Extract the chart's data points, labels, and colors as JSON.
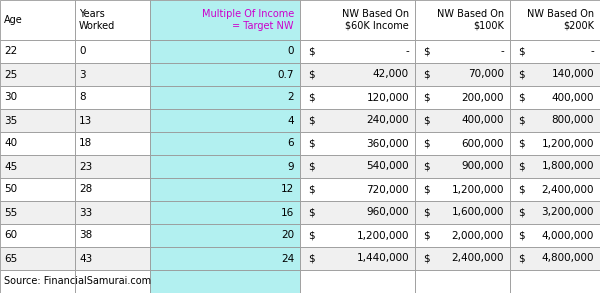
{
  "source": "Source: FinancialSamurai.com",
  "headers": [
    "Age",
    "Years\nWorked",
    "Multiple Of Income\n= Target NW",
    "NW Based On\n$60K Income",
    "NW Based On\n$100K",
    "NW Based On\n$200K"
  ],
  "rows": [
    [
      "22",
      "0",
      "0",
      "$",
      "-",
      "$",
      "-",
      "$",
      "-"
    ],
    [
      "25",
      "3",
      "0.7",
      "$",
      "42,000",
      "$",
      "70,000",
      "$",
      "140,000"
    ],
    [
      "30",
      "8",
      "2",
      "$",
      "120,000",
      "$",
      "200,000",
      "$",
      "400,000"
    ],
    [
      "35",
      "13",
      "4",
      "$",
      "240,000",
      "$",
      "400,000",
      "$",
      "800,000"
    ],
    [
      "40",
      "18",
      "6",
      "$",
      "360,000",
      "$",
      "600,000",
      "$",
      "1,200,000"
    ],
    [
      "45",
      "23",
      "9",
      "$",
      "540,000",
      "$",
      "900,000",
      "$",
      "1,800,000"
    ],
    [
      "50",
      "28",
      "12",
      "$",
      "720,000",
      "$",
      "1,200,000",
      "$",
      "2,400,000"
    ],
    [
      "55",
      "33",
      "16",
      "$",
      "960,000",
      "$",
      "1,600,000",
      "$",
      "3,200,000"
    ],
    [
      "60",
      "38",
      "20",
      "$",
      "1,200,000",
      "$",
      "2,000,000",
      "$",
      "4,000,000"
    ],
    [
      "65",
      "43",
      "24",
      "$",
      "1,440,000",
      "$",
      "2,400,000",
      "$",
      "4,800,000"
    ]
  ],
  "rows_simple": [
    [
      "22",
      "0",
      "0",
      "$ -",
      "$ -",
      "$ -"
    ],
    [
      "25",
      "3",
      "0.7",
      "$ 42,000",
      "$ 70,000",
      "$ 140,000"
    ],
    [
      "30",
      "8",
      "2",
      "$ 120,000",
      "$ 200,000",
      "$ 400,000"
    ],
    [
      "35",
      "13",
      "4",
      "$ 240,000",
      "$ 400,000",
      "$ 800,000"
    ],
    [
      "40",
      "18",
      "6",
      "$ 360,000",
      "$ 600,000",
      "$ 1,200,000"
    ],
    [
      "45",
      "23",
      "9",
      "$ 540,000",
      "$ 900,000",
      "$ 1,800,000"
    ],
    [
      "50",
      "28",
      "12",
      "$ 720,000",
      "$ 1,200,000",
      "$ 2,400,000"
    ],
    [
      "55",
      "33",
      "16",
      "$ 960,000",
      "$ 1,600,000",
      "$ 3,200,000"
    ],
    [
      "60",
      "38",
      "20",
      "$ 1,200,000",
      "$ 2,000,000",
      "$ 4,000,000"
    ],
    [
      "65",
      "43",
      "24",
      "$ 1,440,000",
      "$ 2,400,000",
      "$ 4,800,000"
    ]
  ],
  "col2_bg": "#b2f0f0",
  "border_color": "#999999",
  "text_color": "#000000",
  "header_col2_color": "#cc00cc",
  "fig_width": 6.0,
  "fig_height": 2.93,
  "dpi": 100
}
